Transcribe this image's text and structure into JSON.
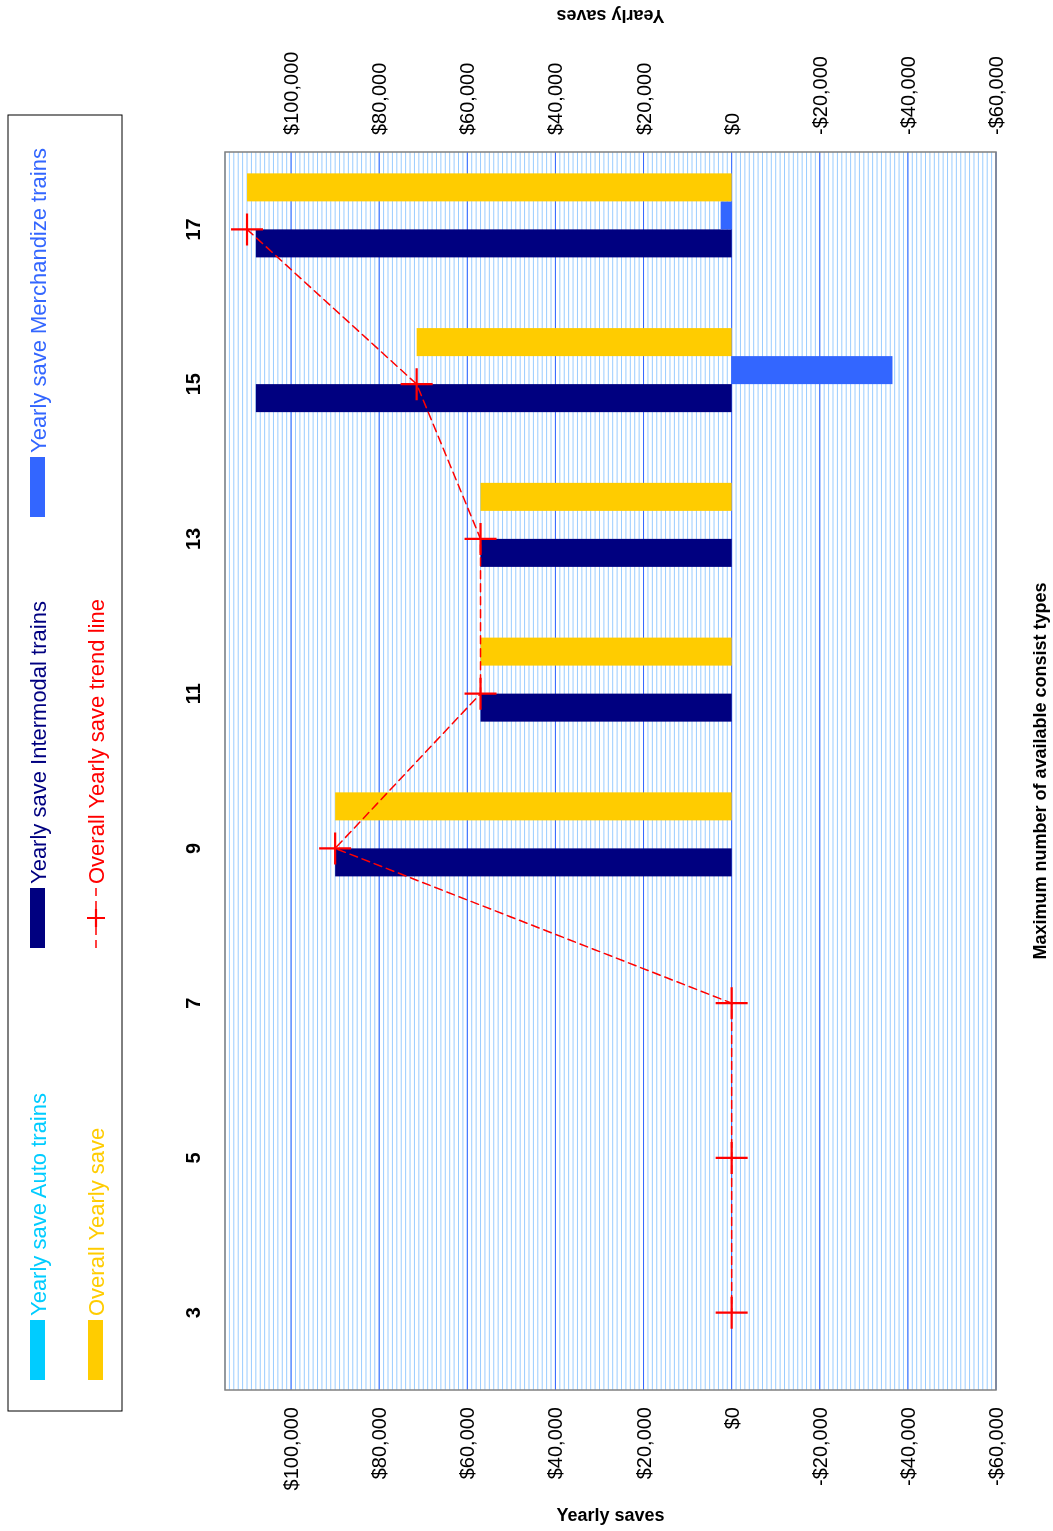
{
  "chart_data": {
    "type": "bar",
    "orientation": "horizontal",
    "ylabel": "Maximum number of available consist types",
    "xlabel": "Yearly saves",
    "x2label": "Yearly saves",
    "categories": [
      "17",
      "15",
      "13",
      "11",
      "9",
      "7",
      "5",
      "3"
    ],
    "series": [
      {
        "name": "Yearly save Auto trains",
        "color": "#00ccff",
        "values": [
          0,
          0,
          0,
          0,
          0,
          0,
          0,
          0
        ]
      },
      {
        "name": "Yearly save Intermodal trains",
        "color": "#000080",
        "values": [
          108000,
          108000,
          57000,
          57000,
          90000,
          0,
          0,
          0
        ]
      },
      {
        "name": "Yearly save Merchandize trains",
        "color": "#3366ff",
        "values": [
          2500,
          -36500,
          0,
          0,
          0,
          0,
          0,
          0
        ]
      },
      {
        "name": "Overall Yearly save",
        "color": "#ffcc00",
        "values": [
          110000,
          71500,
          57000,
          57000,
          90000,
          0,
          0,
          0
        ]
      },
      {
        "name": "Overall Yearly save trend line",
        "type": "line",
        "color": "#ff0000",
        "line_style": "dashed",
        "marker": "cross",
        "values": [
          110000,
          71500,
          57000,
          57000,
          90000,
          0,
          0,
          0
        ]
      }
    ],
    "xlim": [
      115000,
      -60000
    ],
    "xticks": [
      {
        "value": 100000,
        "label": "$100,000"
      },
      {
        "value": 80000,
        "label": "$80,000"
      },
      {
        "value": 60000,
        "label": "$60,000"
      },
      {
        "value": 40000,
        "label": "$40,000"
      },
      {
        "value": 20000,
        "label": "$20,000"
      },
      {
        "value": 0,
        "label": "$0"
      },
      {
        "value": -20000,
        "label": "-$20,000"
      },
      {
        "value": -40000,
        "label": "-$40,000"
      },
      {
        "value": -60000,
        "label": "-$60,000"
      }
    ],
    "x2lim": [
      115000,
      -60000
    ],
    "x2ticks": [
      {
        "value": 100000,
        "label": "$100,000"
      },
      {
        "value": 80000,
        "label": "$80,000"
      },
      {
        "value": 60000,
        "label": "$60,000"
      },
      {
        "value": 40000,
        "label": "$40,000"
      },
      {
        "value": 20000,
        "label": "$20,000"
      },
      {
        "value": 0,
        "label": "$0"
      },
      {
        "value": -20000,
        "label": "-$20,000"
      },
      {
        "value": -40000,
        "label": "-$40,000"
      },
      {
        "value": -60000,
        "label": "-$60,000"
      }
    ],
    "grid": "x",
    "legend": "left"
  }
}
